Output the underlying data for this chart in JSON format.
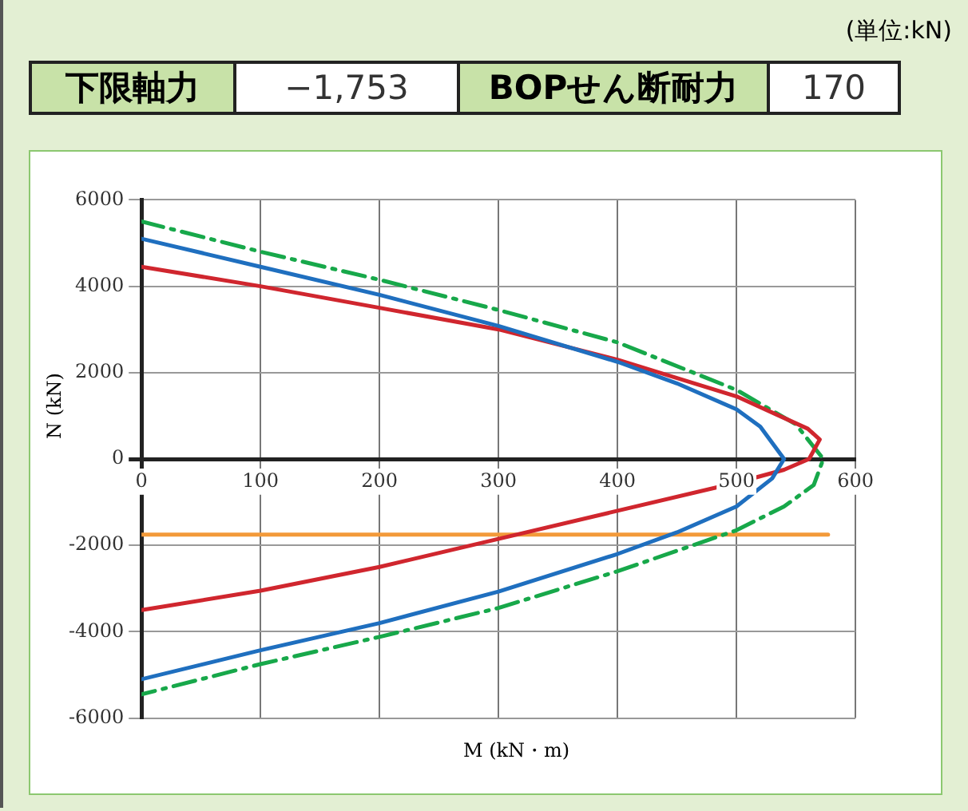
{
  "chart_data": {
    "type": "line",
    "xlabel": "M (kN・m)",
    "ylabel": "N (kN)",
    "annotations": [
      "(単位:kN)",
      "下限軸力",
      "−1,753",
      "BOPせん断耐力",
      "170"
    ],
    "xlim": [
      0,
      600
    ],
    "xticks": [
      0,
      100,
      200,
      300,
      400,
      500,
      600
    ],
    "ylim": [
      -6000,
      6000
    ],
    "yticks": [
      -6000,
      -4000,
      -2000,
      0,
      2000,
      4000,
      6000
    ],
    "grid": true,
    "legend": false,
    "marker": "none",
    "series": [
      {
        "color": "#1f6fbf",
        "x": [
          0,
          100,
          200,
          300,
          400,
          450,
          500,
          520,
          540,
          530,
          500,
          450,
          400,
          300,
          200,
          100,
          0
        ],
        "values": [
          5100,
          4450,
          3800,
          3080,
          2250,
          1750,
          1150,
          750,
          0,
          -450,
          -1100,
          -1700,
          -2200,
          -3070,
          -3800,
          -4430,
          -5100
        ]
      },
      {
        "color": "#d0262e",
        "x": [
          0,
          100,
          200,
          300,
          400,
          500,
          540,
          560,
          570,
          561,
          540,
          500,
          400,
          300,
          200,
          100,
          0
        ],
        "values": [
          4450,
          4000,
          3500,
          3000,
          2300,
          1450,
          950,
          700,
          450,
          0,
          -250,
          -550,
          -1200,
          -1850,
          -2500,
          -3050,
          -3500
        ]
      },
      {
        "color": "#17a84a",
        "line_style": "dashed",
        "x": [
          0,
          100,
          200,
          300,
          400,
          500,
          550,
          573,
          565,
          540,
          500,
          400,
          300,
          200,
          100,
          0
        ],
        "values": [
          5500,
          4800,
          4150,
          3450,
          2700,
          1600,
          800,
          0,
          -600,
          -1100,
          -1650,
          -2600,
          -3450,
          -4120,
          -4750,
          -5450
        ]
      },
      {
        "color": "#f39a3a",
        "x": [
          0,
          577
        ],
        "values": [
          -1753,
          -1753
        ]
      }
    ]
  }
}
